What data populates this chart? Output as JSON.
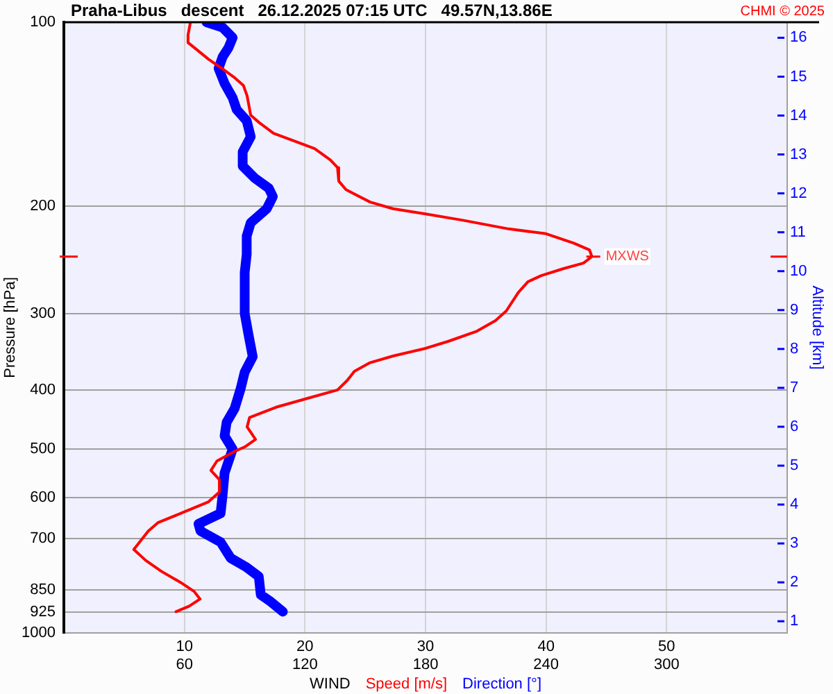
{
  "chart_data": {
    "type": "line",
    "orientation": "horizontal",
    "title": "Praha-Libus   descent   26.12.2025 07:15 UTC   49.57N,13.86E",
    "xlabel": "WIND",
    "ylabel": "Pressure [hPa]",
    "y2label": "Altitude [km]",
    "annotations": [
      "CHMI © 2025",
      {
        "text": "MXWS",
        "x": 43.8,
        "y": 242
      }
    ],
    "series": [
      {
        "name": "Speed [m/s]",
        "color": "#ff0000",
        "x": [
          100,
          105,
          108,
          110,
          115,
          119,
          123,
          127,
          132,
          142,
          146,
          152,
          157,
          161,
          168,
          173,
          182,
          188,
          197,
          202,
          206,
          211,
          218,
          222,
          230,
          236,
          242,
          248,
          253,
          260,
          266,
          277,
          297,
          308,
          321,
          333,
          342,
          352,
          361,
          373,
          386,
          400,
          414,
          427,
          444,
          460,
          482,
          496,
          505,
          523,
          542,
          561,
          588,
          610,
          637,
          660,
          681,
          730,
          761,
          793,
          827,
          855,
          880,
          904,
          923
        ],
        "values": [
          10.5,
          10.3,
          10.3,
          10.8,
          12.0,
          13.1,
          14.1,
          14.9,
          15.2,
          15.5,
          16.2,
          17.4,
          19.3,
          20.8,
          22.1,
          22.7,
          22.8,
          23.4,
          25.4,
          27.3,
          30.0,
          33.1,
          36.9,
          40.0,
          42.3,
          43.6,
          43.8,
          43.1,
          41.5,
          39.6,
          38.5,
          37.7,
          36.7,
          35.8,
          34.2,
          31.9,
          30.0,
          27.3,
          25.4,
          24.1,
          23.5,
          22.7,
          20.0,
          17.6,
          15.4,
          15.2,
          15.9,
          15.0,
          14.1,
          12.7,
          12.2,
          12.9,
          12.9,
          12.0,
          9.7,
          7.8,
          7.0,
          5.8,
          6.8,
          8.1,
          9.7,
          10.8,
          11.3,
          10.4,
          9.3
        ]
      },
      {
        "name": "Direction [°]",
        "color": "#0000ff",
        "axis": "x2",
        "x": [
          100,
          102,
          106,
          110,
          114,
          119,
          126,
          133,
          139,
          145,
          154,
          163,
          172,
          180,
          187,
          193,
          202,
          213,
          224,
          240,
          257,
          280,
          300,
          326,
          353,
          374,
          398,
          429,
          452,
          476,
          500,
          547,
          595,
          637,
          663,
          681,
          710,
          754,
          781,
          808,
          866,
          889,
          923
        ],
        "values": [
          71,
          79,
          84,
          82,
          79,
          77,
          80,
          84,
          86,
          91,
          93,
          89,
          89,
          95,
          102,
          104,
          101,
          93,
          91,
          91,
          90,
          90,
          90,
          92,
          94,
          90,
          88,
          85,
          81,
          80,
          84,
          80,
          79,
          78,
          67,
          68,
          78,
          83,
          91,
          97,
          98,
          103,
          109
        ]
      }
    ],
    "xlim": [
      0,
      60
    ],
    "xticks": [
      10,
      20,
      30,
      40,
      50
    ],
    "x2lim": [
      0,
      360
    ],
    "x2ticks": [
      60,
      120,
      180,
      240,
      300
    ],
    "ylim": [
      1000,
      100
    ],
    "yticks": [
      100,
      200,
      300,
      400,
      500,
      600,
      700,
      850,
      925,
      1000
    ],
    "y2lim": [
      0.7,
      16.4
    ],
    "y2ticks": [
      1,
      2,
      3,
      4,
      5,
      6,
      7,
      8,
      9,
      10,
      11,
      12,
      13,
      14,
      15,
      16
    ],
    "log": "y",
    "grid": true,
    "legend": "bottom",
    "marker": "none"
  }
}
